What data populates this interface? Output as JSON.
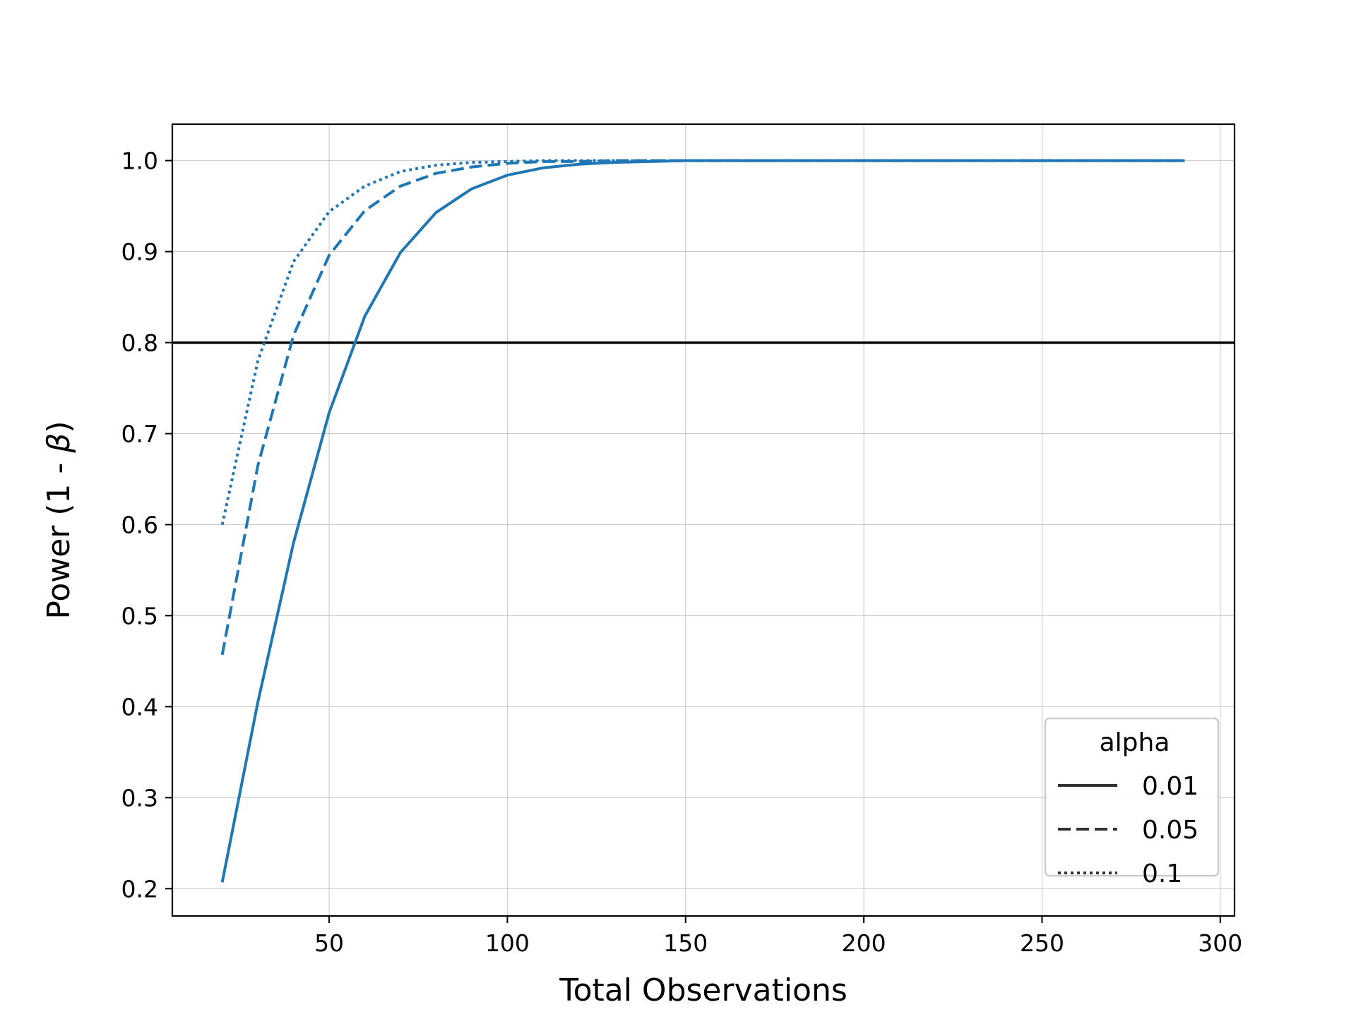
{
  "chart_data": {
    "type": "line",
    "title": "",
    "xlabel": "Total Observations",
    "ylabel_prefix": "Power (1 - ",
    "ylabel_symbol": "β",
    "ylabel_suffix": ")",
    "xlim": [
      6,
      304
    ],
    "ylim": [
      0.17,
      1.04
    ],
    "xticks": [
      50,
      100,
      150,
      200,
      250,
      300
    ],
    "yticks": [
      0.2,
      0.3,
      0.4,
      0.5,
      0.6,
      0.7,
      0.8,
      0.9,
      1.0
    ],
    "xtick_labels": [
      "50",
      "100",
      "150",
      "200",
      "250",
      "300"
    ],
    "ytick_labels": [
      "0.2",
      "0.3",
      "0.4",
      "0.5",
      "0.6",
      "0.7",
      "0.8",
      "0.9",
      "1.0"
    ],
    "grid": true,
    "reference_line": {
      "y": 0.8
    },
    "legend": {
      "title": "alpha",
      "placement": "lower-right"
    },
    "line_color": "#1f77b4",
    "x": [
      20,
      30,
      40,
      50,
      60,
      70,
      80,
      90,
      100,
      110,
      120,
      130,
      140,
      150,
      160,
      170,
      180,
      190,
      200,
      210,
      220,
      230,
      240,
      250,
      260,
      270,
      280,
      290
    ],
    "series": [
      {
        "name": "0.01",
        "dash": "solid",
        "values": [
          0.207,
          0.405,
          0.58,
          0.723,
          0.829,
          0.899,
          0.943,
          0.969,
          0.984,
          0.992,
          0.996,
          0.998,
          0.999,
          1.0,
          1.0,
          1.0,
          1.0,
          1.0,
          1.0,
          1.0,
          1.0,
          1.0,
          1.0,
          1.0,
          1.0,
          1.0,
          1.0,
          1.0
        ]
      },
      {
        "name": "0.05",
        "dash": "dashed",
        "values": [
          0.457,
          0.665,
          0.808,
          0.896,
          0.945,
          0.972,
          0.986,
          0.993,
          0.997,
          0.999,
          0.999,
          1.0,
          1.0,
          1.0,
          1.0,
          1.0,
          1.0,
          1.0,
          1.0,
          1.0,
          1.0,
          1.0,
          1.0,
          1.0,
          1.0,
          1.0,
          1.0,
          1.0
        ]
      },
      {
        "name": "0.1",
        "dash": "dotted",
        "values": [
          0.6,
          0.78,
          0.889,
          0.944,
          0.972,
          0.988,
          0.995,
          0.998,
          0.999,
          1.0,
          1.0,
          1.0,
          1.0,
          1.0,
          1.0,
          1.0,
          1.0,
          1.0,
          1.0,
          1.0,
          1.0,
          1.0,
          1.0,
          1.0,
          1.0,
          1.0,
          1.0,
          1.0
        ]
      }
    ]
  }
}
